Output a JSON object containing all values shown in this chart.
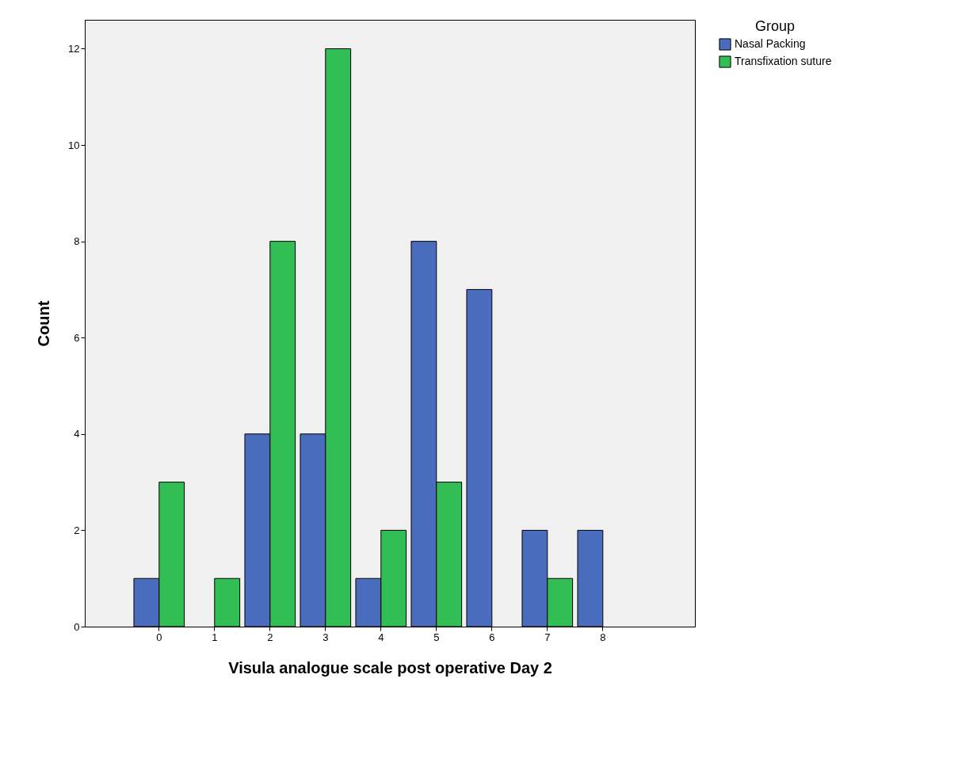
{
  "chart_data": {
    "type": "bar",
    "xlabel": "Visula analogue scale post operative Day 2",
    "ylabel": "Count",
    "legend_title": "Group",
    "categories": [
      "0",
      "1",
      "2",
      "3",
      "4",
      "5",
      "6",
      "7",
      "8"
    ],
    "series": [
      {
        "name": "Nasal Packing",
        "color": "#4a6cbd",
        "values": [
          1,
          null,
          4,
          4,
          1,
          8,
          7,
          2,
          2
        ]
      },
      {
        "name": "Transfixation suture",
        "color": "#33be55",
        "values": [
          3,
          1,
          8,
          12,
          2,
          3,
          null,
          1,
          null
        ]
      }
    ],
    "ylim": [
      0,
      12.6
    ],
    "yticks": [
      0,
      2,
      4,
      6,
      8,
      10,
      12
    ],
    "grid": false,
    "legend": "top right"
  }
}
